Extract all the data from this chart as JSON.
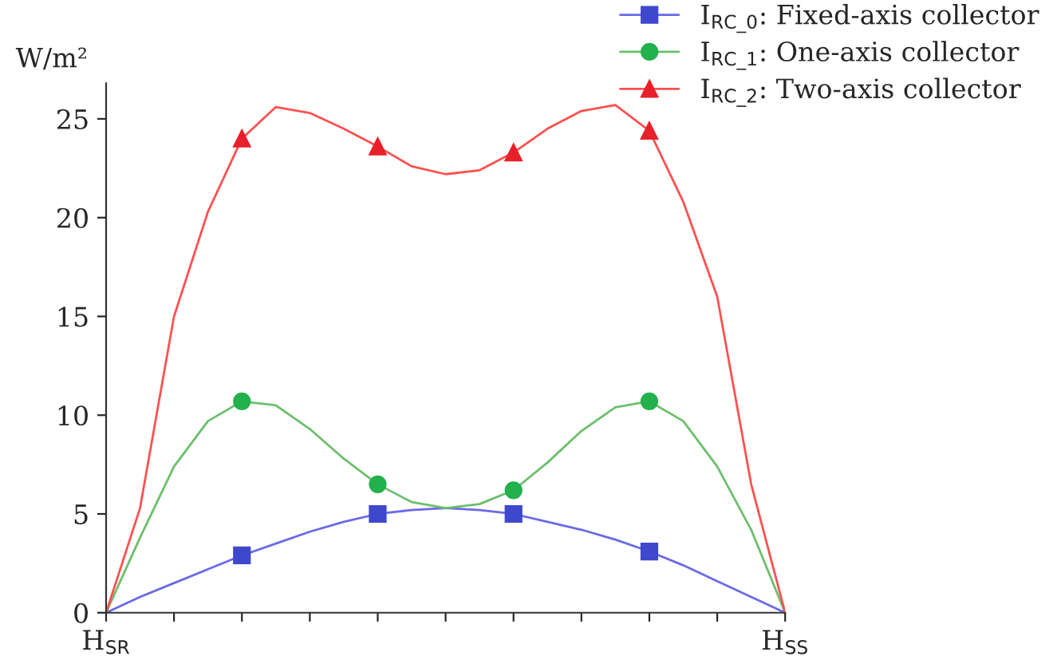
{
  "chart_data": {
    "type": "line",
    "ylabel": "W/m²",
    "ylim": [
      0,
      26.8
    ],
    "yticks": [
      0,
      5,
      10,
      15,
      20,
      25
    ],
    "grid": false,
    "legend": "top right",
    "line_style": "solid",
    "categories": [
      "H$_{SR}$",
      null,
      null,
      null,
      null,
      null,
      null,
      null,
      null,
      null,
      null,
      null,
      null,
      null,
      null,
      null,
      null,
      null,
      null,
      null,
      "H$_{SS}$"
    ],
    "series": [
      {
        "name": "I$_{RC_0}$: Fixed-axis collector",
        "color": "#6a6ae8",
        "values": [
          0,
          0.8,
          1.5,
          2.2,
          2.9,
          3.5,
          4.1,
          4.6,
          5.0,
          5.2,
          5.3,
          5.2,
          5.0,
          4.6,
          4.2,
          3.7,
          3.1,
          2.4,
          1.6,
          0.8,
          0
        ]
      },
      {
        "type": "scatter",
        "color": "#3f48cc",
        "marker": "square",
        "values": [
          null,
          null,
          null,
          null,
          2.9,
          null,
          null,
          null,
          5.0,
          null,
          null,
          null,
          5.0,
          null,
          null,
          null,
          3.1,
          null,
          null,
          null,
          null
        ]
      },
      {
        "name": "I$_{RC_1}$: One-axis collector",
        "color": "#6cbf6c",
        "values": [
          0,
          3.8,
          7.4,
          9.7,
          10.7,
          10.5,
          9.3,
          7.8,
          6.5,
          5.6,
          5.3,
          5.5,
          6.2,
          7.6,
          9.2,
          10.4,
          10.7,
          9.7,
          7.4,
          4.2,
          0
        ]
      },
      {
        "type": "scatter",
        "color": "#22b14c",
        "marker": "circle",
        "values": [
          null,
          null,
          null,
          null,
          10.7,
          null,
          null,
          null,
          6.5,
          null,
          null,
          null,
          6.2,
          null,
          null,
          null,
          10.7,
          null,
          null,
          null,
          null
        ]
      },
      {
        "name": "I$_{RC_2}$: Two-axis collector",
        "color": "#ff5050",
        "values": [
          0,
          5.3,
          15,
          20.3,
          24.0,
          25.6,
          25.3,
          24.5,
          23.6,
          22.6,
          22.2,
          22.4,
          23.3,
          24.5,
          25.4,
          25.7,
          24.4,
          20.8,
          16,
          6.5,
          0
        ]
      },
      {
        "type": "scatter",
        "color": "#e8202a",
        "marker": "triangle",
        "values": [
          null,
          null,
          null,
          null,
          24.0,
          null,
          null,
          null,
          23.6,
          null,
          null,
          null,
          23.3,
          null,
          null,
          null,
          24.4,
          null,
          null,
          null,
          null
        ]
      }
    ]
  }
}
